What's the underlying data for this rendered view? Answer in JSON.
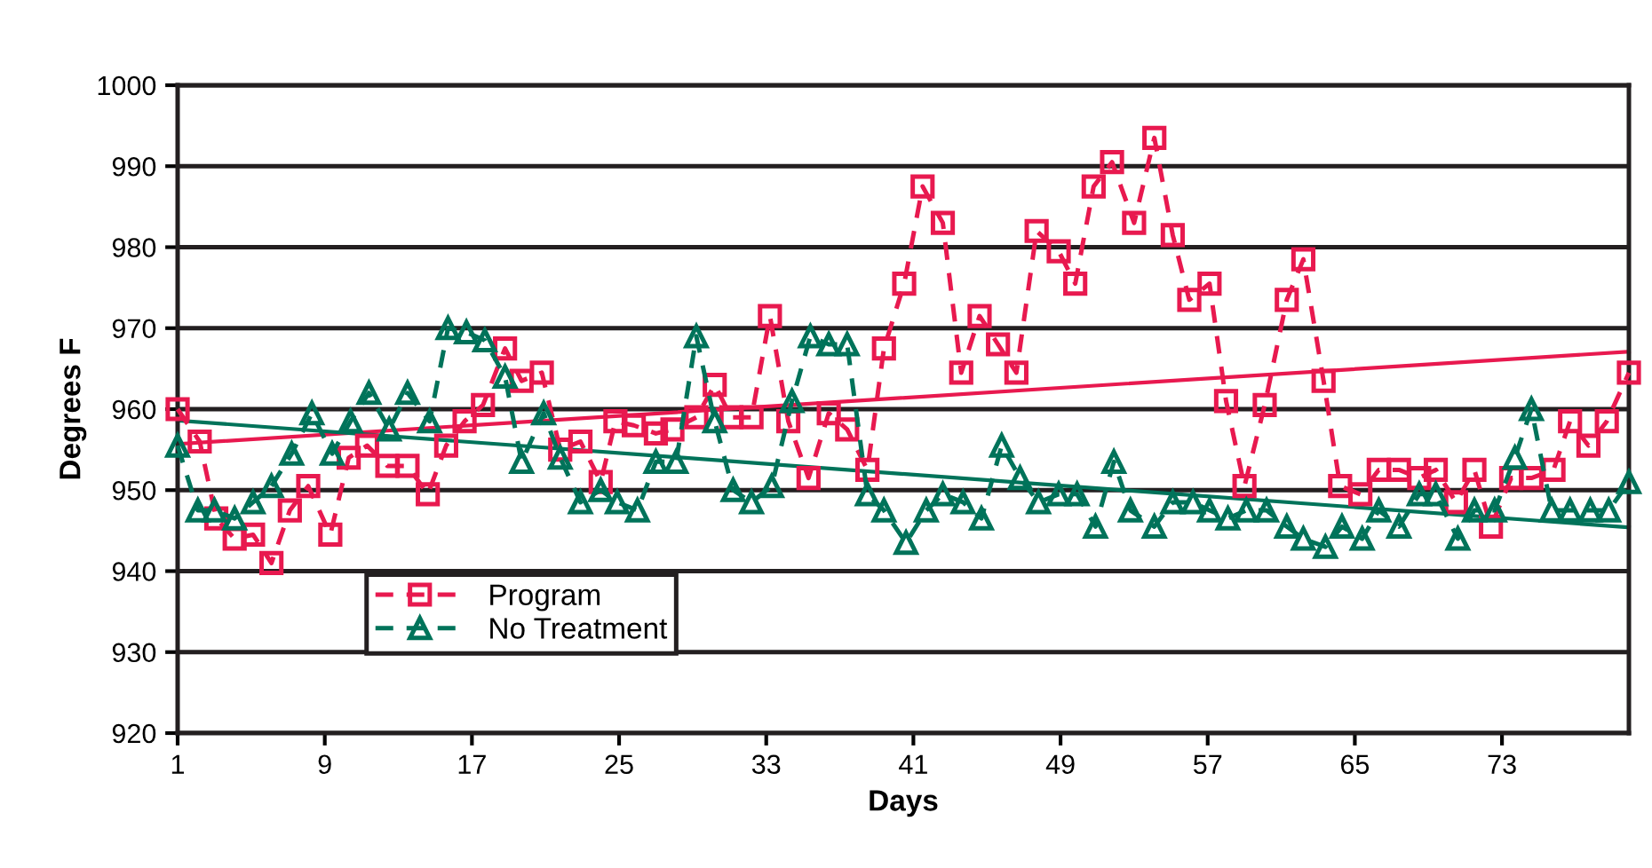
{
  "chart_data": {
    "type": "line",
    "xlabel": "Days",
    "ylabel": "Degrees F",
    "xlim": [
      1,
      79.9
    ],
    "xticks": [
      1,
      9,
      17,
      25,
      33,
      41,
      49,
      57,
      65,
      73
    ],
    "ylim": [
      920,
      1000
    ],
    "yticks": [
      920,
      930,
      940,
      950,
      960,
      970,
      980,
      990,
      1000
    ],
    "grid": "y",
    "legend": "bottom left",
    "series": [
      {
        "name": "Program",
        "color": "#e8194f",
        "marker": "square",
        "line_style": "dashed",
        "x": [
          1.0,
          2.2,
          3.1,
          4.1,
          5.1,
          6.1,
          7.1,
          8.1,
          9.3,
          10.3,
          11.3,
          12.4,
          13.5,
          14.6,
          15.6,
          16.6,
          17.6,
          18.8,
          19.7,
          20.8,
          21.8,
          22.9,
          24.0,
          24.8,
          25.8,
          27.0,
          27.9,
          29.2,
          30.2,
          31.1,
          32.2,
          33.2,
          34.2,
          35.3,
          36.4,
          37.4,
          38.5,
          39.4,
          40.5,
          41.5,
          42.6,
          43.6,
          44.6,
          45.6,
          46.6,
          47.7,
          48.9,
          49.8,
          50.8,
          51.8,
          53.0,
          54.1,
          55.1,
          56.0,
          57.1,
          58.0,
          59.0,
          60.1,
          61.3,
          62.2,
          63.3,
          64.2,
          65.3,
          66.3,
          67.4,
          68.5,
          69.4,
          70.5,
          71.5,
          72.4,
          73.5,
          74.6,
          75.8,
          76.7,
          77.7,
          78.7,
          79.9
        ],
        "values": [
          960,
          956,
          946.5,
          944,
          944.5,
          941,
          947.5,
          950.5,
          944.5,
          954,
          955.5,
          953,
          953,
          949.5,
          955.5,
          958.5,
          960.5,
          967.5,
          963.5,
          964.5,
          955,
          956,
          951,
          958.5,
          958,
          957,
          957.5,
          959,
          963,
          959,
          959,
          971.5,
          958.5,
          951.5,
          959.5,
          957.5,
          952.5,
          967.5,
          975.5,
          987.5,
          983,
          964.5,
          971.5,
          968,
          964.5,
          982,
          979.5,
          975.5,
          987.5,
          990.5,
          983,
          993.5,
          981.5,
          973.5,
          975.5,
          961,
          950.5,
          960.5,
          973.5,
          978.5,
          963.5,
          950.5,
          949.5,
          952.5,
          952.5,
          951.5,
          952.5,
          948.5,
          952.5,
          945.5,
          951.5,
          951.5,
          952.5,
          958.5,
          955.5,
          958.5,
          964.5
        ]
      },
      {
        "name": "No Treatment",
        "color": "#00735a",
        "marker": "triangle",
        "line_style": "dashed",
        "x": [
          1.0,
          2.1,
          3.0,
          4.1,
          5.1,
          6.1,
          7.2,
          8.3,
          9.4,
          10.4,
          11.4,
          12.5,
          13.5,
          14.7,
          15.7,
          16.7,
          17.7,
          18.8,
          19.7,
          20.9,
          21.8,
          22.9,
          24.0,
          24.9,
          26.0,
          27.0,
          28.1,
          29.2,
          30.2,
          31.2,
          32.2,
          33.3,
          34.4,
          35.4,
          36.4,
          37.4,
          38.5,
          39.4,
          40.6,
          41.7,
          42.6,
          43.7,
          44.7,
          45.8,
          46.8,
          47.8,
          48.9,
          49.9,
          50.9,
          51.9,
          52.8,
          54.1,
          55.1,
          56.2,
          57.1,
          58.1,
          59.1,
          60.2,
          61.3,
          62.2,
          63.4,
          64.3,
          65.4,
          66.3,
          67.4,
          68.5,
          69.4,
          70.6,
          71.5,
          72.6,
          73.7,
          74.6,
          75.7,
          76.7,
          77.8,
          78.8,
          79.9
        ],
        "values": [
          955.5,
          947.5,
          947.5,
          946.5,
          948.5,
          950.5,
          954.5,
          959.5,
          954.5,
          958.5,
          962,
          957.5,
          962,
          958.5,
          970,
          969.5,
          968.5,
          964,
          953.5,
          959.5,
          954,
          948.5,
          950,
          948.5,
          947.5,
          953.5,
          953.5,
          969,
          958.5,
          950,
          948.5,
          950.5,
          961,
          969,
          968,
          968,
          949.5,
          947.5,
          943.5,
          947.5,
          949.5,
          948.5,
          946.5,
          955.5,
          951.5,
          948.5,
          949.5,
          949.5,
          945.5,
          953.5,
          947.5,
          945.5,
          948.5,
          948.5,
          947.5,
          946.5,
          947.5,
          947.5,
          945.5,
          944,
          943,
          945.5,
          944,
          947.5,
          945.5,
          949.5,
          949.5,
          944,
          947.5,
          947.5,
          954,
          960,
          947.5,
          947.5,
          947.5,
          947.5,
          951
        ]
      },
      {
        "type": "line",
        "color": "#e8194f",
        "marker": "none",
        "line_style": "solid",
        "x": [
          1,
          79.9
        ],
        "values": [
          955.7,
          967.1
        ]
      },
      {
        "type": "line",
        "color": "#00735a",
        "marker": "none",
        "line_style": "solid",
        "x": [
          1,
          79.9
        ],
        "values": [
          958.6,
          945.4
        ]
      }
    ]
  }
}
